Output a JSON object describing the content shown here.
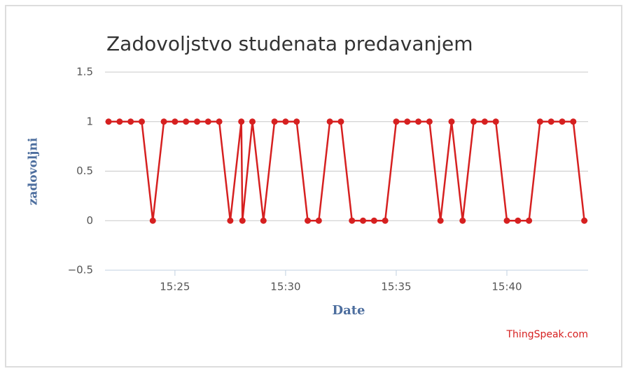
{
  "chart_data": {
    "type": "line",
    "title": "Zadovoljstvo studenata predavanjem",
    "y_label": "zadovoljni",
    "x_label": "Date",
    "credit": "ThingSpeak.com",
    "x": [
      922,
      922.5,
      923,
      923.5,
      924,
      924.5,
      925,
      925.5,
      926,
      926.5,
      927,
      927.5,
      928,
      928.05,
      928.5,
      929,
      929.5,
      930,
      930.5,
      931,
      931.5,
      932,
      932.5,
      933,
      933.5,
      934,
      934.5,
      935,
      935.5,
      936,
      936.5,
      937,
      937.5,
      938,
      938.5,
      939,
      939.5,
      940,
      940.5,
      941,
      941.5,
      942,
      942.5,
      943,
      943.5
    ],
    "series": [
      {
        "name": "zadovoljni",
        "color": "#d62020",
        "values": [
          1,
          1,
          1,
          1,
          0,
          1,
          1,
          1,
          1,
          1,
          1,
          0,
          1,
          0,
          1,
          0,
          1,
          1,
          1,
          0,
          0,
          1,
          1,
          0,
          0,
          0,
          0,
          1,
          1,
          1,
          1,
          0,
          1,
          0,
          1,
          1,
          1,
          0,
          0,
          0,
          1,
          1,
          1,
          1,
          0
        ]
      }
    ],
    "xlim": [
      921.84,
      943.67
    ],
    "xticks": [
      {
        "value": 925,
        "label": "15:25"
      },
      {
        "value": 930,
        "label": "15:30"
      },
      {
        "value": 935,
        "label": "15:35"
      },
      {
        "value": 940,
        "label": "15:40"
      }
    ],
    "ylim": [
      -0.5,
      1.5
    ],
    "yticks": [
      {
        "value": -0.5,
        "label": "−0.5"
      },
      0,
      0.5,
      1,
      1.5
    ],
    "grid": true
  }
}
